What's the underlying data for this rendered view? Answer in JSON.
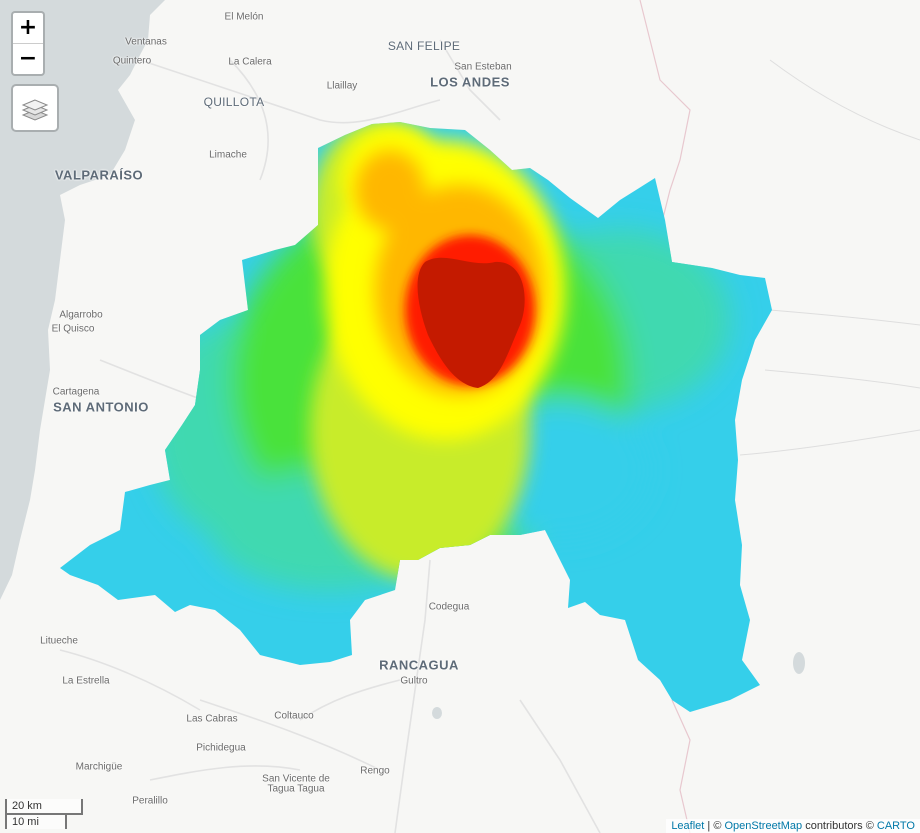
{
  "map": {
    "places": [
      {
        "id": "el-melon",
        "name": "El Melón",
        "size": "small"
      },
      {
        "id": "ventanas",
        "name": "Ventanas",
        "size": "small"
      },
      {
        "id": "quintero",
        "name": "Quintero",
        "size": "small"
      },
      {
        "id": "la-calera",
        "name": "La Calera",
        "size": "small"
      },
      {
        "id": "quillota",
        "name": "QUILLOTA",
        "size": "mid"
      },
      {
        "id": "san-felipe",
        "name": "SAN FELIPE",
        "size": "mid"
      },
      {
        "id": "san-esteban",
        "name": "San Esteban",
        "size": "small"
      },
      {
        "id": "los-andes",
        "name": "LOS ANDES",
        "size": "big"
      },
      {
        "id": "llaillay",
        "name": "Llaillay",
        "size": "small"
      },
      {
        "id": "limache",
        "name": "Limache",
        "size": "small"
      },
      {
        "id": "valparaiso",
        "name": "VALPARAÍSO",
        "size": "big"
      },
      {
        "id": "algarrobo",
        "name": "Algarrobo",
        "size": "small"
      },
      {
        "id": "el-quisco",
        "name": "El Quisco",
        "size": "small"
      },
      {
        "id": "cartagena",
        "name": "Cartagena",
        "size": "small"
      },
      {
        "id": "san-antonio",
        "name": "SAN ANTONIO",
        "size": "big"
      },
      {
        "id": "codegua",
        "name": "Codegua",
        "size": "small"
      },
      {
        "id": "rancagua",
        "name": "RANCAGUA",
        "size": "big"
      },
      {
        "id": "gultro",
        "name": "Gultro",
        "size": "small"
      },
      {
        "id": "litueche",
        "name": "Litueche",
        "size": "small"
      },
      {
        "id": "la-estrella",
        "name": "La Estrella",
        "size": "small"
      },
      {
        "id": "las-cabras",
        "name": "Las Cabras",
        "size": "small"
      },
      {
        "id": "coltauco",
        "name": "Coltauco",
        "size": "small"
      },
      {
        "id": "pichidegua",
        "name": "Pichidegua",
        "size": "small"
      },
      {
        "id": "marchigue",
        "name": "Marchigüe",
        "size": "small"
      },
      {
        "id": "rengo",
        "name": "Rengo",
        "size": "small"
      },
      {
        "id": "san-vicente-1",
        "name": "San Vicente de",
        "size": "small"
      },
      {
        "id": "san-vicente-2",
        "name": "Tagua Tagua",
        "size": "small"
      },
      {
        "id": "peralillo",
        "name": "Peralillo",
        "size": "small"
      }
    ],
    "heatmap_colors": [
      "#35cfea",
      "#3fd9b0",
      "#49e23a",
      "#c8ec2c",
      "#ffff00",
      "#ffb700",
      "#ff5a00",
      "#ff1a00",
      "#c41a00"
    ]
  },
  "controls": {
    "zoom_in": "+",
    "zoom_out": "−",
    "layers_icon": "layers-icon"
  },
  "scale": {
    "km": "20 km",
    "mi": "10 mi"
  },
  "attribution": {
    "leaflet": "Leaflet",
    "sep1": " | © ",
    "osm": "OpenStreetMap",
    "contrib": " contributors © ",
    "carto": "CARTO"
  }
}
